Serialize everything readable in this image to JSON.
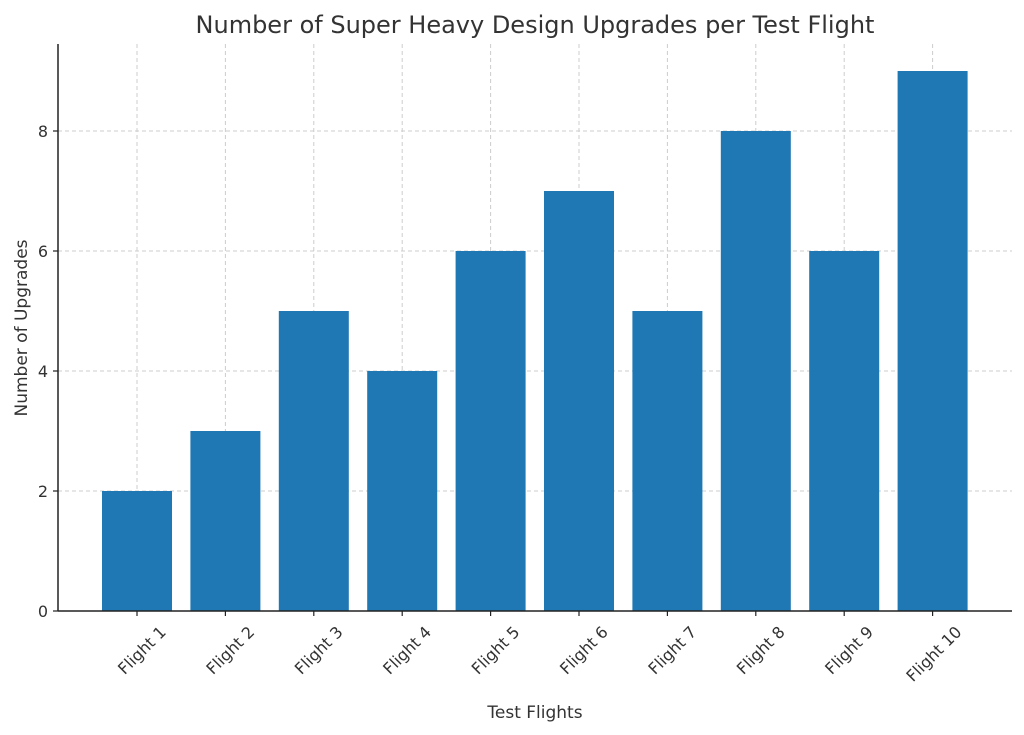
{
  "chart_data": {
    "type": "bar",
    "title": "Number of Super Heavy Design Upgrades per Test Flight",
    "xlabel": "Test Flights",
    "ylabel": "Number of Upgrades",
    "categories": [
      "Flight 1",
      "Flight 2",
      "Flight 3",
      "Flight 4",
      "Flight 5",
      "Flight 6",
      "Flight 7",
      "Flight 8",
      "Flight 9",
      "Flight 10"
    ],
    "values": [
      2,
      3,
      5,
      4,
      6,
      7,
      5,
      8,
      6,
      9
    ],
    "ylim": [
      0,
      9.45
    ],
    "yticks": [
      0,
      2,
      4,
      6,
      8
    ],
    "grid": true,
    "bar_color": "#1f77b4"
  }
}
